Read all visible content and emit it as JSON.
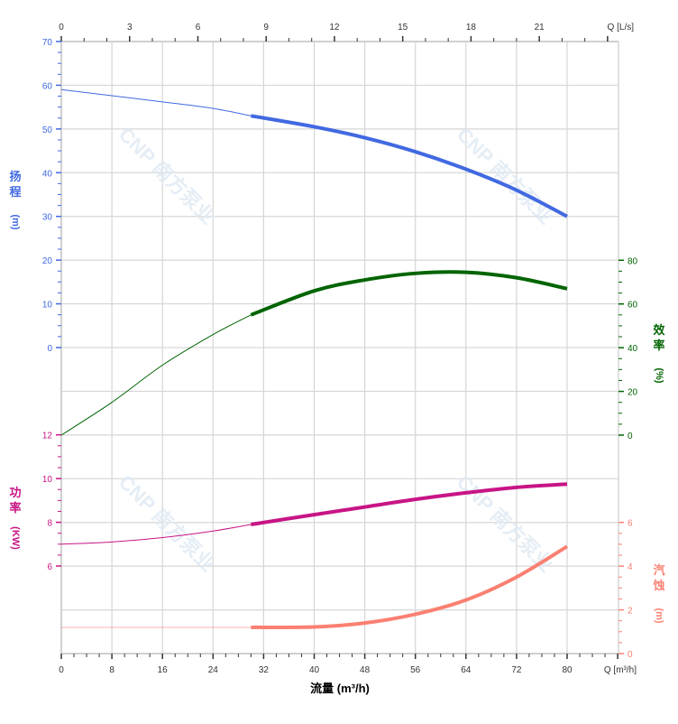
{
  "chart_data": {
    "type": "line",
    "x_axis_bottom": {
      "label": "流量 (m³/h)",
      "unit_label": "Q [m³/h]",
      "range": [
        0,
        88
      ],
      "ticks": [
        0,
        8,
        16,
        24,
        32,
        40,
        48,
        56,
        64,
        72,
        80
      ],
      "tick_labels": [
        "0",
        "8",
        "16",
        "24",
        "32",
        "40",
        "48",
        "56",
        "64",
        "72",
        "80"
      ]
    },
    "x_axis_top": {
      "unit_label": "Q [L/s]",
      "ticks": [
        0,
        3,
        6,
        9,
        12,
        15,
        18,
        21
      ],
      "tick_labels": [
        "0",
        "3",
        "6",
        "9",
        "12",
        "15",
        "18",
        "21"
      ]
    },
    "axes": {
      "head": {
        "label_chars": [
          "扬",
          "程",
          "(m)"
        ],
        "ticks": [
          0,
          10,
          20,
          30,
          40,
          50,
          60,
          70
        ],
        "tick_labels": [
          "0",
          "10",
          "20",
          "30",
          "40",
          "50",
          "60",
          "70"
        ],
        "range": [
          0,
          70
        ],
        "color": "#4169e1"
      },
      "efficiency": {
        "label_chars": [
          "效",
          "率",
          "(%)"
        ],
        "ticks": [
          0,
          20,
          40,
          60,
          80
        ],
        "tick_labels": [
          "0",
          "20",
          "40",
          "60",
          "80"
        ],
        "range": [
          0,
          80
        ],
        "color": "#006400"
      },
      "power": {
        "label_chars": [
          "功",
          "率",
          "(KW)"
        ],
        "ticks": [
          6,
          8,
          10,
          12
        ],
        "tick_labels": [
          "6",
          "8",
          "10",
          "12"
        ],
        "range": [
          6,
          12
        ],
        "color": "#c71585"
      },
      "npsh": {
        "label_chars": [
          "汽",
          "蚀",
          "(m)"
        ],
        "ticks": [
          0,
          2,
          4,
          6
        ],
        "tick_labels": [
          "0",
          "2",
          "4",
          "6"
        ],
        "range": [
          0,
          6
        ],
        "color": "#fa8072"
      }
    },
    "x": [
      0,
      8,
      16,
      24,
      30,
      40,
      48,
      56,
      64,
      72,
      80
    ],
    "operating_range_start": 30,
    "series": [
      {
        "axis": "head",
        "values": [
          59,
          57.6,
          56.2,
          54.7,
          53,
          50.5,
          48,
          44.8,
          40.8,
          36,
          30
        ]
      },
      {
        "axis": "efficiency",
        "values": [
          0,
          15,
          32,
          46,
          55,
          66,
          71,
          74,
          74.5,
          72,
          67
        ]
      },
      {
        "axis": "power",
        "values": [
          7.0,
          7.1,
          7.3,
          7.6,
          7.9,
          8.35,
          8.7,
          9.05,
          9.35,
          9.6,
          9.75
        ]
      },
      {
        "axis": "npsh",
        "values": [
          1.2,
          1.2,
          1.2,
          1.2,
          1.2,
          1.22,
          1.4,
          1.8,
          2.45,
          3.5,
          4.9
        ]
      }
    ],
    "grid": true
  },
  "watermark": "CNP 南方泵业"
}
